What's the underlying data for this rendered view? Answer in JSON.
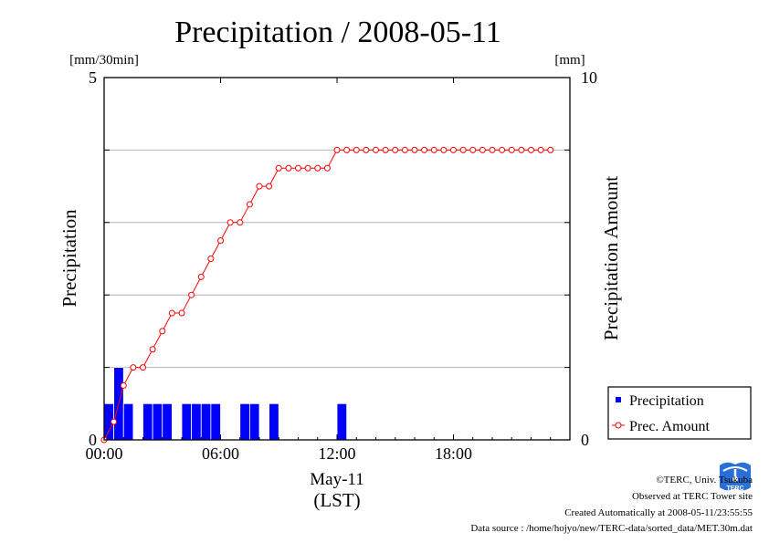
{
  "chart_data": {
    "type": "bar",
    "title": "Precipitation / 2008-05-11",
    "ylabel_left": "Precipitation",
    "ylabel_right": "Precipitation Amount",
    "yunit_left": "[mm/30min]",
    "yunit_right": "[mm]",
    "ylim_left": [
      0,
      5
    ],
    "ylim_right": [
      0,
      10
    ],
    "left_tick_labels": [
      "0",
      "5"
    ],
    "right_tick_labels": [
      "0",
      "10"
    ],
    "xlim_hours": [
      0,
      24
    ],
    "x_tick_labels": [
      "00:00",
      "06:00",
      "12:00",
      "18:00"
    ],
    "x_tick_hours": [
      0,
      6,
      12,
      18
    ],
    "xlabel_date": "May-11",
    "xlabel_tz": "(LST)",
    "grid": true,
    "legend_position": "bottom-right",
    "series": [
      {
        "name": "Precipitation",
        "kind": "bar",
        "axis": "left",
        "color": "#0000ff",
        "x_hours": [
          0.0,
          0.5,
          1.0,
          2.0,
          2.5,
          3.0,
          4.0,
          4.5,
          5.0,
          5.5,
          7.0,
          7.5,
          8.5,
          12.0
        ],
        "values": [
          0.5,
          1.0,
          0.5,
          0.5,
          0.5,
          0.5,
          0.5,
          0.5,
          0.5,
          0.5,
          0.5,
          0.5,
          0.5,
          0.5
        ]
      },
      {
        "name": "Prec. Amount",
        "kind": "line",
        "axis": "right",
        "color": "#ff0000",
        "x_hours": [
          0.0,
          0.5,
          1.0,
          1.5,
          2.0,
          2.5,
          3.0,
          3.5,
          4.0,
          4.5,
          5.0,
          5.5,
          6.0,
          6.5,
          7.0,
          7.5,
          8.0,
          8.5,
          9.0,
          9.5,
          10.0,
          10.5,
          11.0,
          11.5,
          12.0,
          12.5,
          13.0,
          13.5,
          14.0,
          14.5,
          15.0,
          15.5,
          16.0,
          16.5,
          17.0,
          17.5,
          18.0,
          18.5,
          19.0,
          19.5,
          20.0,
          20.5,
          21.0,
          21.5,
          22.0,
          22.5,
          23.0
        ],
        "values": [
          0.0,
          0.5,
          1.5,
          2.0,
          2.0,
          2.5,
          3.0,
          3.5,
          3.5,
          4.0,
          4.5,
          5.0,
          5.5,
          6.0,
          6.0,
          6.5,
          7.0,
          7.0,
          7.5,
          7.5,
          7.5,
          7.5,
          7.5,
          7.5,
          8.0,
          8.0,
          8.0,
          8.0,
          8.0,
          8.0,
          8.0,
          8.0,
          8.0,
          8.0,
          8.0,
          8.0,
          8.0,
          8.0,
          8.0,
          8.0,
          8.0,
          8.0,
          8.0,
          8.0,
          8.0,
          8.0,
          8.0
        ]
      }
    ]
  },
  "legend": {
    "items": [
      {
        "label": "Precipitation"
      },
      {
        "label": "Prec. Amount"
      }
    ]
  },
  "footer": {
    "copyright": "©TERC, Univ. Tsukuba",
    "observed": "Observed at TERC Tower site",
    "created": "Created Automatically at 2008-05-11/23:55:55",
    "source": "Data source : /home/hojyo/new/TERC-data/sorted_data/MET.30m.dat",
    "logo_text": "TERC"
  }
}
